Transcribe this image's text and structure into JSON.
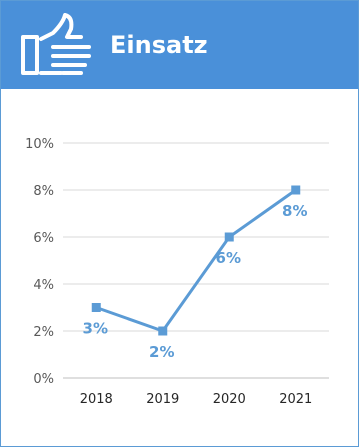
{
  "header": {
    "title": "Einsatz",
    "icon": "thumbs-up-icon",
    "background_color": "#4a90d9",
    "title_color": "#ffffff"
  },
  "chart_data": {
    "type": "line",
    "title": "",
    "xlabel": "",
    "ylabel": "",
    "categories": [
      "2018",
      "2019",
      "2020",
      "2021"
    ],
    "values": [
      3,
      2,
      6,
      8
    ],
    "data_labels": [
      "3%",
      "2%",
      "6%",
      "8%"
    ],
    "yticks": [
      "0%",
      "2%",
      "4%",
      "6%",
      "8%",
      "10%"
    ],
    "ylim": [
      0,
      10
    ],
    "grid": true,
    "legend": "none",
    "line_color": "#5b9bd5",
    "label_color": "#5b9bd5",
    "marker": "square"
  }
}
